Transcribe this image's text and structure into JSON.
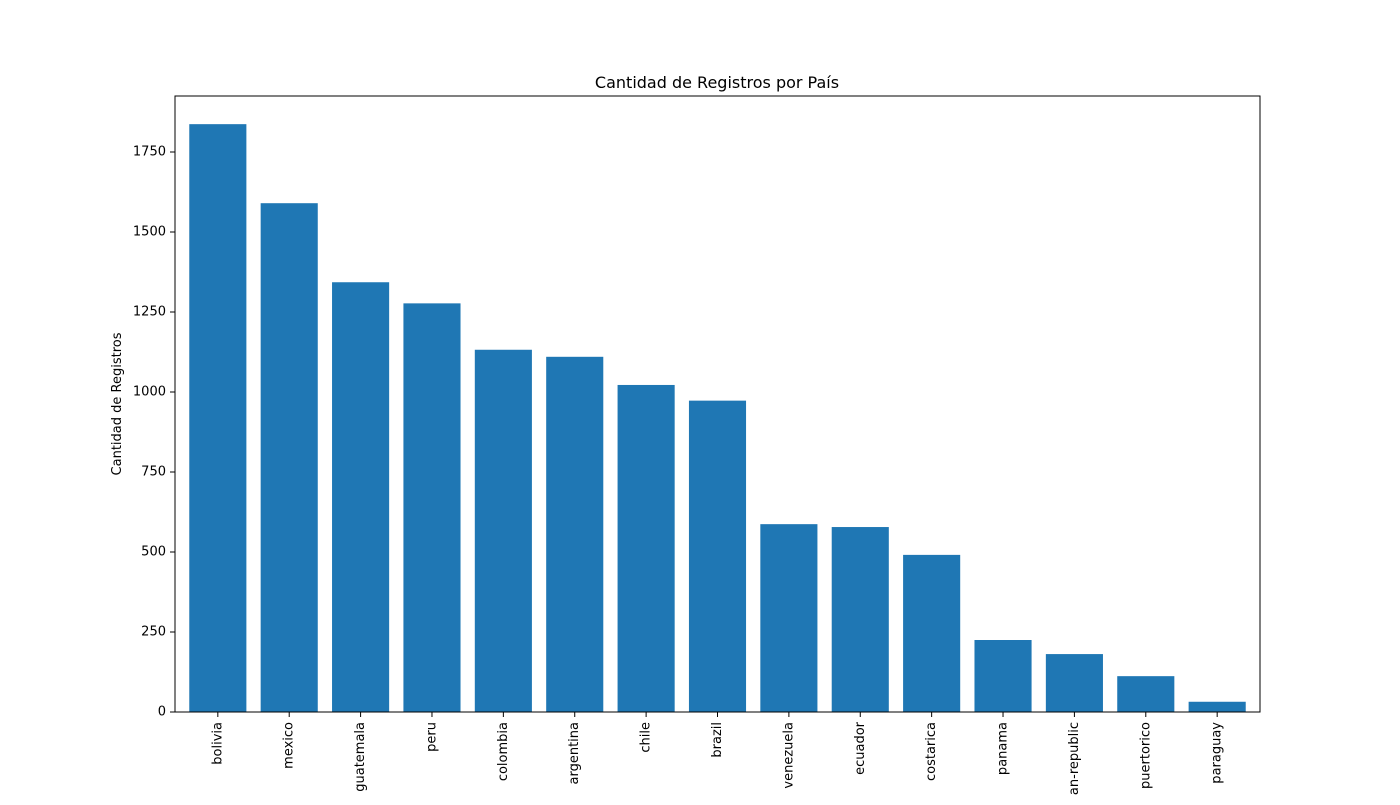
{
  "chart_data": {
    "type": "bar",
    "title": "Cantidad de Registros por País",
    "xlabel": "",
    "ylabel": "Cantidad de Registros",
    "categories": [
      "bolivia",
      "mexico",
      "guatemala",
      "peru",
      "colombia",
      "argentina",
      "chile",
      "brazil",
      "venezuela",
      "ecuador",
      "costarica",
      "panama",
      "an-republic",
      "puertorico",
      "paraguay"
    ],
    "values": [
      1837,
      1590,
      1343,
      1277,
      1132,
      1110,
      1022,
      973,
      587,
      578,
      491,
      225,
      181,
      112,
      32
    ],
    "ylim": [
      0,
      1925
    ],
    "yticks": [
      0,
      250,
      500,
      750,
      1000,
      1250,
      1500,
      1750
    ],
    "bar_color": "#1f77b4",
    "grid": false
  }
}
